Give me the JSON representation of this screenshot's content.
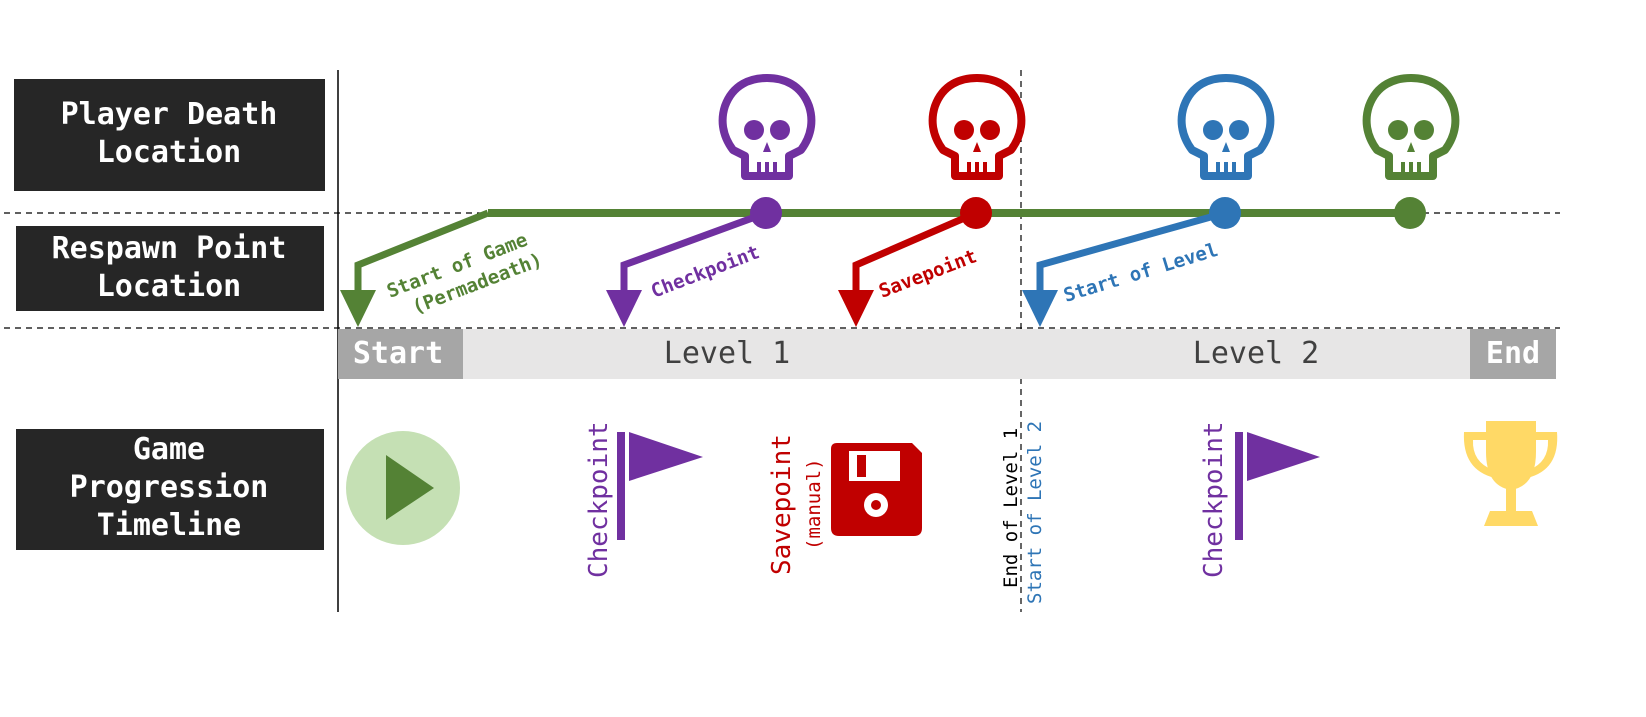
{
  "rows": {
    "death": [
      "Player Death",
      "Location"
    ],
    "respawn": [
      "Respawn Point",
      "Location"
    ],
    "progression": [
      "Game",
      "Progression",
      "Timeline"
    ]
  },
  "timeline": {
    "start": "Start",
    "level1": "Level 1",
    "level2": "Level 2",
    "end": "End"
  },
  "respawn_arrows": {
    "permadeath": [
      "Start of Game",
      "(Permadeath)"
    ],
    "checkpoint": "Checkpoint",
    "savepoint": "Savepoint",
    "start_of_level": "Start of Level"
  },
  "markers": {
    "checkpoint1": "Checkpoint",
    "savepoint": "Savepoint",
    "savepoint_note": "(manual)",
    "end_level1": "End of Level 1",
    "start_level2": "Start of Level 2",
    "checkpoint2": "Checkpoint"
  },
  "icons": [
    "skull-icon",
    "play-icon",
    "flag-icon",
    "floppy-disk-icon",
    "trophy-icon"
  ],
  "colors": {
    "green": "#548235",
    "purple": "#7030a0",
    "red": "#c00000",
    "blue": "#2e75b6",
    "dark_box": "#262626",
    "gold": "#ffd966",
    "play_bg": "#c5e0b4",
    "bar_gray": "#e7e6e6",
    "cap_gray": "#a6a6a6"
  }
}
